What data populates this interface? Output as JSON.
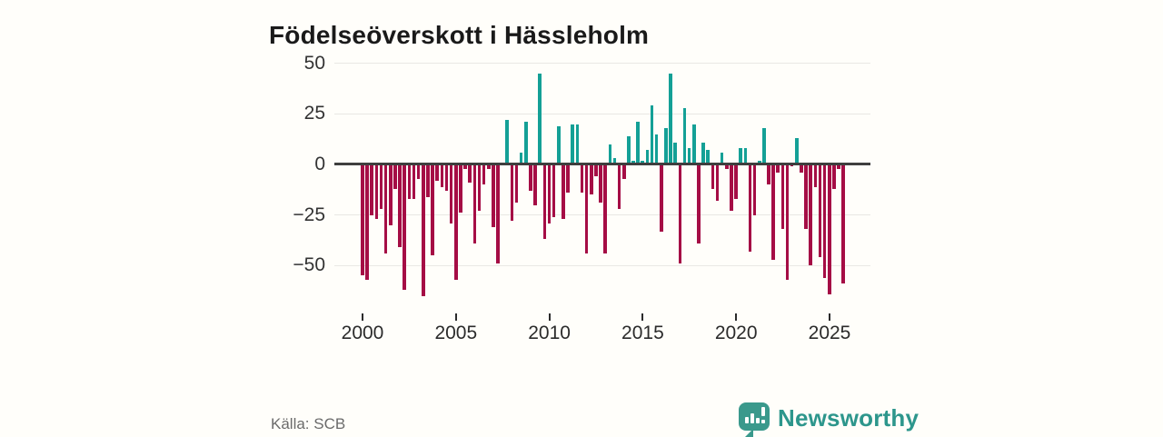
{
  "title": "Födelseöverskott i Hässleholm",
  "source": "Källa: SCB",
  "brand": {
    "name": "Newsworthy",
    "icon": "bar-chart-speech-bubble",
    "text_color": "#2d968c",
    "icon_bg": "#3a998c"
  },
  "colors": {
    "positive_bar": "#14a096",
    "negative_bar": "#a50d45",
    "zero_line": "#3f3f3f",
    "gridline": "#e9e8e4",
    "axis_text": "#333333",
    "title_text": "#1a1a1a",
    "source_text": "#6b6b6b",
    "background": "#fffefa"
  },
  "chart_data": {
    "type": "bar",
    "title": "Födelseöverskott i Hässleholm",
    "unit": "persons per quarter",
    "frequency": "quarterly",
    "x_start": "2000 Q1",
    "x_end": "2025 Q4",
    "grid": "horizontal",
    "legend": "none",
    "ylim": [
      -68,
      55
    ],
    "y_ticks": [
      50,
      25,
      0,
      -25,
      -50
    ],
    "y_tick_labels": [
      "50",
      "25",
      "0",
      "−25",
      "−50"
    ],
    "x_tick_labels": [
      "2000",
      "2005",
      "2010",
      "2015",
      "2020",
      "2025"
    ],
    "values": [
      -55,
      -57,
      -25,
      -27,
      -22,
      -44,
      -30,
      -12,
      -41,
      -62,
      -17,
      -17,
      -7,
      -65,
      -16,
      -45,
      -8,
      -11,
      -13,
      -29,
      -57,
      -24,
      -2,
      -9,
      -39,
      -23,
      -10,
      -2,
      -31,
      -49,
      1,
      22,
      -28,
      -19,
      6,
      21,
      -13,
      -20,
      45,
      -37,
      -29,
      -26,
      19,
      -27,
      -14,
      20,
      20,
      -14,
      -44,
      -15,
      -6,
      -19,
      -44,
      10,
      3,
      -22,
      -7,
      14,
      2,
      21,
      2,
      7,
      29,
      15,
      -33,
      18,
      45,
      11,
      -49,
      28,
      8,
      20,
      -39,
      11,
      7,
      -12,
      -18,
      6,
      -2,
      -23,
      -17,
      8,
      8,
      -43,
      -25,
      2,
      18,
      -10,
      -47,
      -4,
      -32,
      -57,
      -1,
      13,
      -4,
      -32,
      -50,
      -11,
      -46,
      -56,
      -64,
      -12,
      -2,
      -59
    ]
  }
}
